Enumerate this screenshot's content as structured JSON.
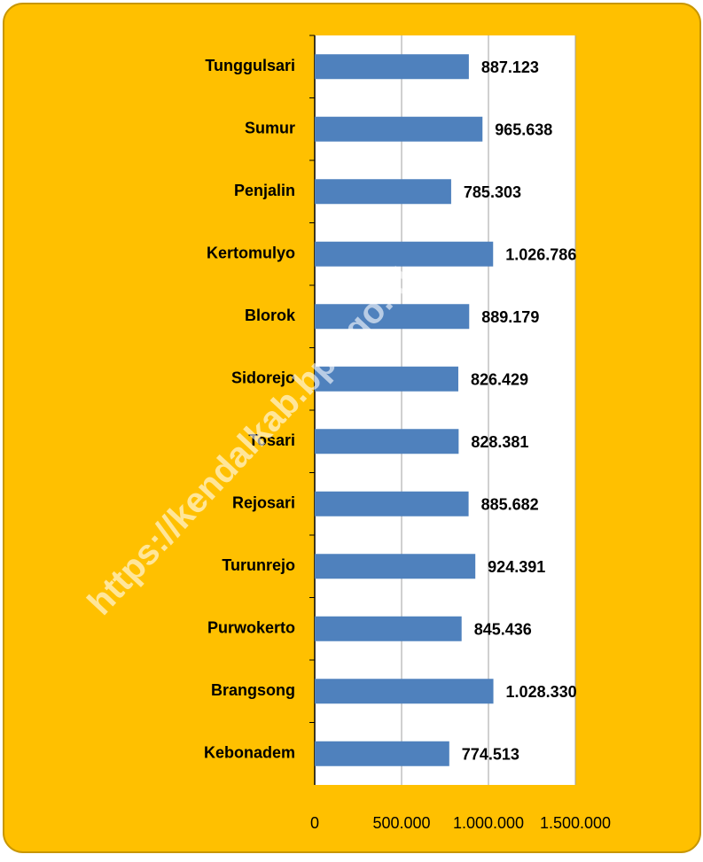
{
  "chart_data": {
    "type": "barh",
    "categories": [
      "Tunggulsari",
      "Sumur",
      "Penjalin",
      "Kertomulyo",
      "Blorok",
      "Sidorejo",
      "Tosari",
      "Rejosari",
      "Turunrejo",
      "Purwokerto",
      "Brangsong",
      "Kebonadem"
    ],
    "values": [
      887123,
      965638,
      785303,
      1026786,
      889179,
      826429,
      828381,
      885682,
      924391,
      845436,
      1028330,
      774513
    ],
    "value_labels": [
      "887.123",
      "965.638",
      "785.303",
      "1.026.786",
      "889.179",
      "826.429",
      "828.381",
      "885.682",
      "924.391",
      "845.436",
      "1.028.330",
      "774.513"
    ],
    "color": "#4f81bd",
    "xlim": [
      0,
      1500000
    ],
    "xticks": [
      0,
      {
        "value": 500000,
        "label": "500.000"
      },
      {
        "value": 1000000,
        "label": "1.000.000"
      },
      {
        "value": 1500000,
        "label": "1.500.000"
      }
    ],
    "grid": true,
    "watermark": "https://kendalkab.bps.go.id"
  }
}
